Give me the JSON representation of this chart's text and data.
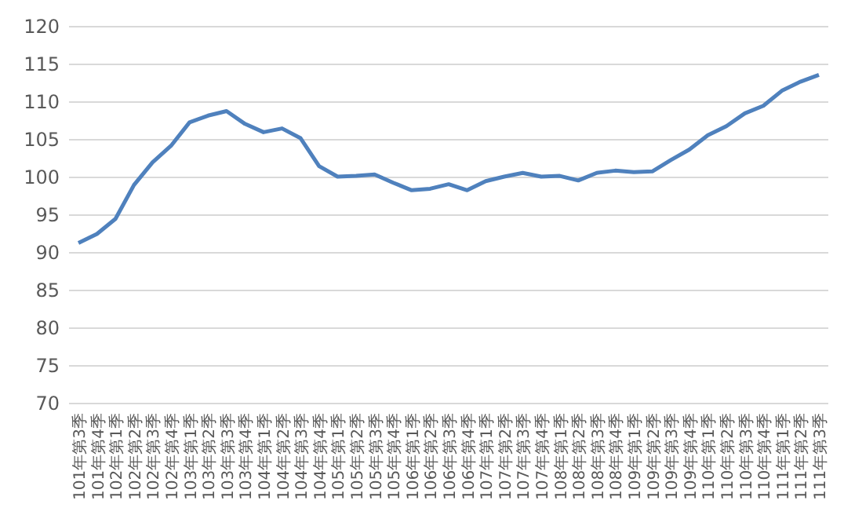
{
  "chart_data": {
    "type": "line",
    "categories": [
      "101年第3季",
      "101年第4季",
      "102年第1季",
      "102年第2季",
      "102年第3季",
      "102年第4季",
      "103年第1季",
      "103年第2季",
      "103年第3季",
      "103年第4季",
      "104年第1季",
      "104年第2季",
      "104年第3季",
      "104年第4季",
      "105年第1季",
      "105年第2季",
      "105年第3季",
      "105年第4季",
      "106年第1季",
      "106年第2季",
      "106年第3季",
      "106年第4季",
      "107年第1季",
      "107年第2季",
      "107年第3季",
      "107年第4季",
      "108年第1季",
      "108年第2季",
      "108年第3季",
      "108年第4季",
      "109年第1季",
      "109年第2季",
      "109年第3季",
      "109年第4季",
      "110年第1季",
      "110年第2季",
      "110年第3季",
      "110年第4季",
      "111年第1季",
      "111年第2季",
      "111年第3季"
    ],
    "series": [
      {
        "color": "#4f81bd",
        "values": [
          91.3,
          92.5,
          94.5,
          99,
          102,
          104.2,
          107.3,
          108.2,
          108.8,
          107.1,
          106,
          106.5,
          105.2,
          101.5,
          100.1,
          100.2,
          100.4,
          99.3,
          98.3,
          98.5,
          99.1,
          98.3,
          99.5,
          100.1,
          100.6,
          100.1,
          100.2,
          99.6,
          100.6,
          100.9,
          100.7,
          100.8,
          102.3,
          103.7,
          105.6,
          106.8,
          108.5,
          109.5,
          111.5,
          112.7,
          113.6
        ]
      }
    ],
    "ylim": [
      70,
      120
    ],
    "yticks": [
      70,
      75,
      80,
      85,
      90,
      95,
      100,
      105,
      110,
      115,
      120
    ],
    "grid": "y",
    "marker": "none",
    "line_style": "solid"
  }
}
